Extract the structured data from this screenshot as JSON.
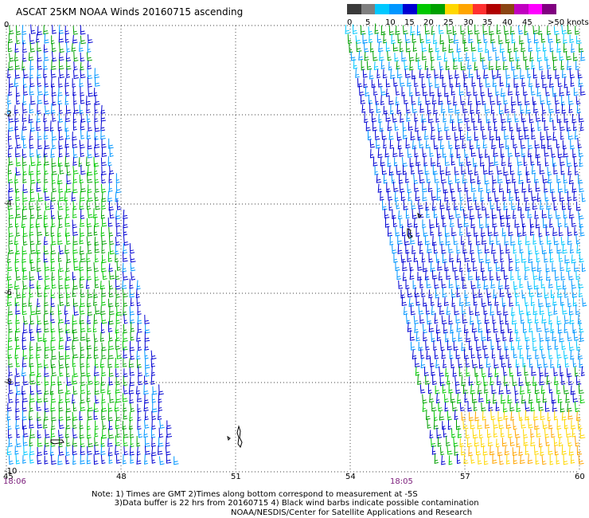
{
  "title": "ASCAT 25KM NOAA Winds 20160715 ascending",
  "legend": {
    "colors": [
      "#3a3a3a",
      "#7f7f7f",
      "#00c8ff",
      "#0096ff",
      "#0000d2",
      "#00c800",
      "#00a000",
      "#ffd700",
      "#ffa500",
      "#ff3030",
      "#b00000",
      "#8b4513",
      "#c000c0",
      "#ff00ff",
      "#800080"
    ],
    "labels": [
      "0",
      "5",
      "10",
      "15",
      "20",
      "25",
      "30",
      "35",
      "40",
      "45",
      ">50 knots"
    ]
  },
  "map": {
    "lat_labels": [
      "0",
      "-2",
      "-4",
      "-6",
      "-8",
      "-10"
    ],
    "lon_labels": [
      "45",
      "48",
      "51",
      "54",
      "57",
      "60"
    ],
    "pass_times": [
      "18:06",
      "18:05"
    ]
  },
  "note": {
    "line1": "Note: 1) Times are GMT 2)Times along bottom correspond to measurement at -5S",
    "line2": "3)Data buffer is 22 hrs from 20160715 4) Black wind barbs indicate possible contamination"
  },
  "credit": "NOAA/NESDIS/Center for Satellite Applications and Research"
}
